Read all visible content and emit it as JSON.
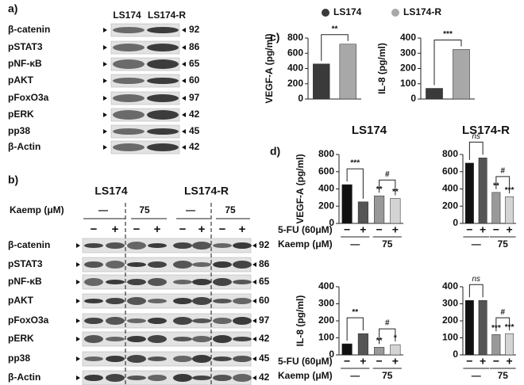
{
  "blot_a": {
    "label": "a)",
    "columns": [
      "LS174",
      "LS174-R"
    ],
    "rows": [
      {
        "protein": "β-catenin",
        "kda": 92
      },
      {
        "protein": "pSTAT3",
        "kda": 86
      },
      {
        "protein": "pNF-κB",
        "kda": 65
      },
      {
        "protein": "pAKT",
        "kda": 60
      },
      {
        "protein": "pFoxO3a",
        "kda": 97
      },
      {
        "protein": "pERK",
        "kda": 42
      },
      {
        "protein": "pp38",
        "kda": 45
      },
      {
        "protein": "β-Actin",
        "kda": 42
      }
    ]
  },
  "blot_b": {
    "label": "b)",
    "groups": [
      "LS174",
      "LS174-R"
    ],
    "kaemp_label": "Kaemp (μM)",
    "kaemp": [
      "—",
      "75",
      "—",
      "75"
    ],
    "fu_signs": [
      "−",
      "+",
      "−",
      "+",
      "−",
      "+",
      "−",
      "+"
    ],
    "rows": [
      {
        "protein": "β-catenin",
        "kda": 92
      },
      {
        "protein": "pSTAT3",
        "kda": 86
      },
      {
        "protein": "pNF-κB",
        "kda": 65
      },
      {
        "protein": "pAKT",
        "kda": 60
      },
      {
        "protein": "pFoxO3a",
        "kda": 97
      },
      {
        "protein": "pERK",
        "kda": 42
      },
      {
        "protein": "pp38",
        "kda": 45
      },
      {
        "protein": "β-Actin",
        "kda": 42
      }
    ]
  },
  "panel_c": {
    "label": "c)",
    "legend": [
      {
        "name": "LS174",
        "color": "#3a3a3a"
      },
      {
        "name": "LS174-R",
        "color": "#a8a8a8"
      }
    ]
  },
  "panel_d": {
    "label": "d)",
    "columns": [
      "LS174",
      "LS174-R"
    ],
    "fu_label": "5-FU (60μM)",
    "fu_signs": [
      "−",
      "+",
      "−",
      "+"
    ],
    "kaemp_label": "Kaemp (μM)",
    "kaemp": [
      "—",
      "75"
    ]
  },
  "chart_data": [
    {
      "type": "bar",
      "y_label": "VEGF-A (pg/ml)",
      "ylim": [
        0,
        800
      ],
      "yticks": [
        0,
        200,
        400,
        600,
        800
      ],
      "values": [
        460,
        720
      ],
      "colors": [
        "#3a3a3a",
        "#a8a8a8"
      ],
      "brackets": [
        "**"
      ]
    },
    {
      "type": "bar",
      "y_label": "IL-8 (pg/ml)",
      "ylim": [
        0,
        400
      ],
      "yticks": [
        0,
        100,
        200,
        300,
        400
      ],
      "values": [
        70,
        325
      ],
      "colors": [
        "#3a3a3a",
        "#a8a8a8"
      ],
      "brackets": [
        "***"
      ]
    },
    {
      "type": "bar",
      "y_label": "VEGF-A (pg/ml)",
      "ylim": [
        0,
        800
      ],
      "yticks": [
        0,
        200,
        400,
        600,
        800
      ],
      "values": [
        450,
        250,
        320,
        290
      ],
      "colors": [
        "#111111",
        "#555555",
        "#999999",
        "#d4d4d4"
      ],
      "brackets": [
        "***",
        "#"
      ],
      "bar_labels": [
        null,
        null,
        "**",
        "**"
      ]
    },
    {
      "type": "bar",
      "ylim": [
        0,
        800
      ],
      "yticks": [
        0,
        200,
        400,
        600,
        800
      ],
      "values": [
        700,
        760,
        360,
        310
      ],
      "colors": [
        "#111111",
        "#555555",
        "#999999",
        "#d4d4d4"
      ],
      "brackets": [
        "ns",
        "#"
      ],
      "bar_labels": [
        null,
        null,
        "**",
        "***"
      ]
    },
    {
      "type": "bar",
      "y_label": "IL-8 (pg/ml)",
      "ylim": [
        0,
        400
      ],
      "yticks": [
        0,
        100,
        200,
        300,
        400
      ],
      "values": [
        65,
        125,
        45,
        60
      ],
      "colors": [
        "#111111",
        "#555555",
        "#999999",
        "#d4d4d4"
      ],
      "brackets": [
        "**",
        "#"
      ],
      "bar_labels": [
        null,
        null,
        "**",
        "*"
      ]
    },
    {
      "type": "bar",
      "ylim": [
        0,
        400
      ],
      "yticks": [
        0,
        100,
        200,
        300,
        400
      ],
      "values": [
        320,
        320,
        120,
        125
      ],
      "colors": [
        "#111111",
        "#555555",
        "#999999",
        "#d4d4d4"
      ],
      "brackets": [
        "ns",
        "#"
      ],
      "bar_labels": [
        null,
        null,
        "***",
        "***"
      ]
    }
  ]
}
